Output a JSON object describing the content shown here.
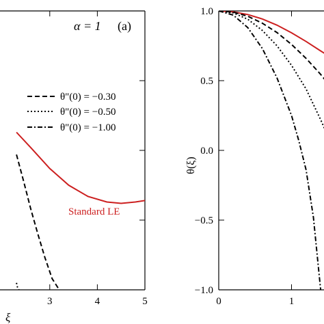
{
  "chart_data": [
    {
      "type": "line",
      "panel_label": "(a)",
      "alpha_label": "α = 1",
      "xlabel": "ξ",
      "xlim": [
        0,
        5
      ],
      "ylim": [
        -1.0,
        1.0
      ],
      "x_ticks": [
        3,
        4,
        5
      ],
      "legend": [
        {
          "label": "θ\"(0) = −0.30",
          "style": "dashed"
        },
        {
          "label": "θ\"(0) = −0.50",
          "style": "dotted"
        },
        {
          "label": "θ\"(0) = −1.00",
          "style": "dashdot"
        }
      ],
      "series": [
        {
          "name": "Standard LE",
          "style": "solid",
          "color": "#cc1f1f",
          "x": [
            2.3,
            2.6,
            3.0,
            3.4,
            3.8,
            4.2,
            4.5,
            4.8,
            5.0
          ],
          "y": [
            0.13,
            0.02,
            -0.13,
            -0.25,
            -0.33,
            -0.37,
            -0.38,
            -0.37,
            -0.36
          ]
        },
        {
          "name": "θ\"(0) = −0.30",
          "style": "dashed",
          "color": "#000000",
          "x": [
            2.3,
            2.45,
            2.6,
            2.75,
            2.9,
            3.05,
            3.2
          ],
          "y": [
            -0.03,
            -0.22,
            -0.42,
            -0.6,
            -0.77,
            -0.92,
            -1.0
          ]
        },
        {
          "name": "θ\"(0) = −0.50",
          "style": "dotted",
          "color": "#000000",
          "x": [
            2.3,
            2.32,
            2.35
          ],
          "y": [
            -0.95,
            -0.98,
            -1.0
          ]
        }
      ],
      "annotations": [
        "Standard LE"
      ]
    },
    {
      "type": "line",
      "ylabel": "θ(ξ)",
      "xlim": [
        0,
        1.5
      ],
      "ylim": [
        -1.0,
        1.0
      ],
      "x_ticks": [
        0,
        1
      ],
      "y_ticks": [
        -1.0,
        -0.5,
        0.0,
        0.5,
        1.0
      ],
      "y_tick_labels": [
        "−1.0",
        "−0.5",
        "0.0",
        "0.5",
        "1.0"
      ],
      "series": [
        {
          "name": "Standard LE",
          "style": "solid",
          "color": "#cc1f1f",
          "x": [
            0,
            0.2,
            0.4,
            0.6,
            0.8,
            1.0,
            1.2,
            1.4,
            1.5
          ],
          "y": [
            1.0,
            0.993,
            0.974,
            0.942,
            0.898,
            0.843,
            0.781,
            0.713,
            0.68
          ]
        },
        {
          "name": "θ\"(0) = −0.30",
          "style": "dashed",
          "color": "#000000",
          "x": [
            0,
            0.2,
            0.4,
            0.6,
            0.8,
            1.0,
            1.2,
            1.4,
            1.5
          ],
          "y": [
            1.0,
            0.991,
            0.962,
            0.912,
            0.845,
            0.76,
            0.66,
            0.545,
            0.48
          ]
        },
        {
          "name": "θ\"(0) = −0.50",
          "style": "dotted",
          "color": "#000000",
          "x": [
            0,
            0.2,
            0.4,
            0.6,
            0.8,
            1.0,
            1.2,
            1.4,
            1.5
          ],
          "y": [
            1.0,
            0.986,
            0.94,
            0.86,
            0.75,
            0.61,
            0.44,
            0.22,
            0.1
          ]
        },
        {
          "name": "θ\"(0) = −1.00",
          "style": "dashdot",
          "color": "#000000",
          "x": [
            0,
            0.2,
            0.4,
            0.6,
            0.8,
            1.0,
            1.1,
            1.2,
            1.3,
            1.4
          ],
          "y": [
            1.0,
            0.97,
            0.88,
            0.73,
            0.52,
            0.25,
            0.07,
            -0.14,
            -0.48,
            -1.0
          ]
        }
      ]
    }
  ],
  "colors": {
    "standard_le": "#cc1f1f",
    "curves": "#000000"
  }
}
